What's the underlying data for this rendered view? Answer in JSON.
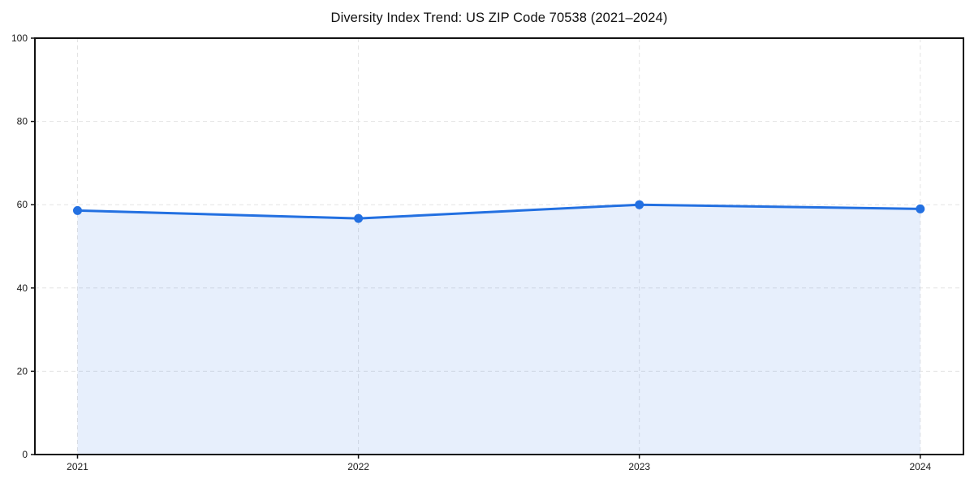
{
  "chart_data": {
    "type": "area",
    "title": "Diversity Index Trend: US ZIP Code 70538 (2021–2024)",
    "xlabel": "",
    "ylabel": "",
    "categories": [
      "2021",
      "2022",
      "2023",
      "2024"
    ],
    "series": [
      {
        "name": "Diversity Index",
        "values": [
          58.6,
          56.7,
          60.0,
          59.0
        ]
      }
    ],
    "ylim": [
      0,
      100
    ],
    "yticks": [
      0,
      20,
      40,
      60,
      80,
      100
    ],
    "grid": "dashed, horizontal at 20/40/60/80 and vertical at each year",
    "legend_position": "none",
    "colors": {
      "line": "#2370e1",
      "point": "#2370e1",
      "area_fill": "rgba(35,112,225,0.11)",
      "grid": "#e3e3e3",
      "spine": "#111111",
      "tick_text": "#1a1a1a",
      "background": "#ffffff"
    }
  }
}
